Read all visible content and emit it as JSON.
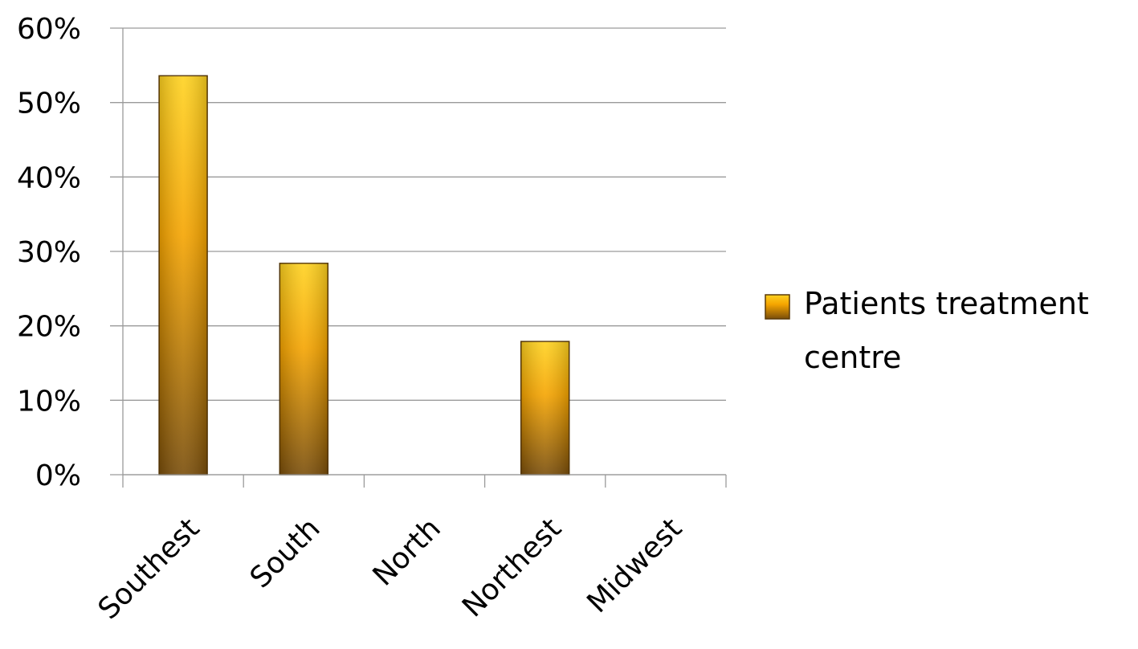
{
  "chart_data": {
    "type": "bar",
    "categories": [
      "Southest",
      "South",
      "North",
      "Northest",
      "Midwest"
    ],
    "series": [
      {
        "name": "Patients treatment centre",
        "values": [
          0.536,
          0.284,
          0,
          0.179,
          0
        ]
      }
    ],
    "ylim": [
      0,
      0.6
    ],
    "yticks": [
      "0%",
      "10%",
      "20%",
      "30%",
      "40%",
      "50%",
      "60%"
    ],
    "grid": true,
    "legend": {
      "position": "right",
      "lines": [
        "Patients treatment",
        "centre"
      ]
    },
    "colors": {
      "bar_top": "#ffd21f",
      "bar_mid": "#f5a400",
      "bar_bottom": "#7a4e0a",
      "bar_stroke": "#5a3a08",
      "grid": "#9a9a9a"
    }
  }
}
